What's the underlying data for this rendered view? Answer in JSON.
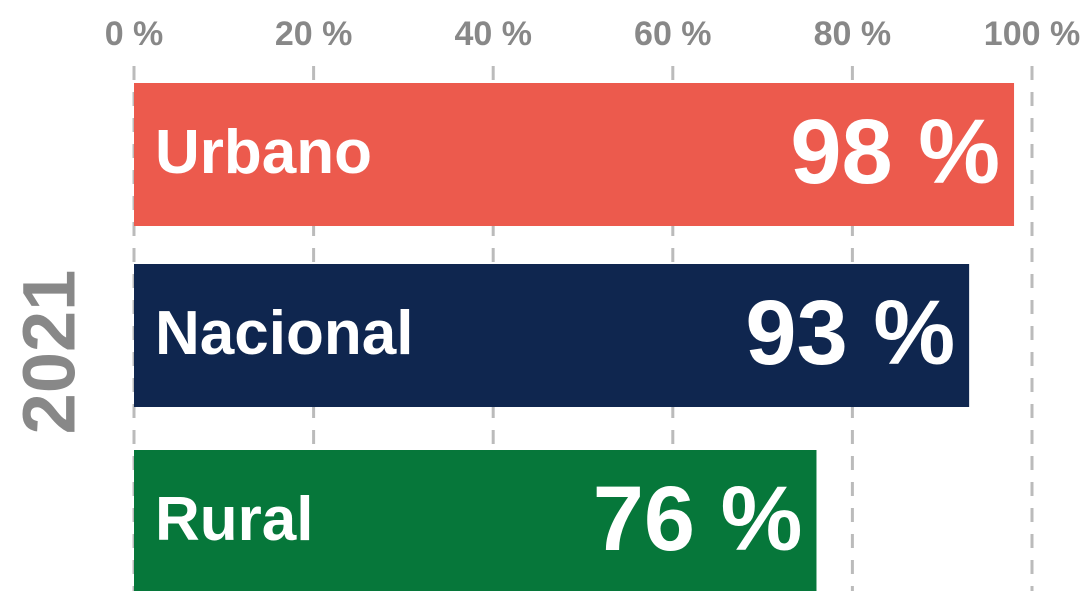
{
  "chart_data": {
    "type": "bar",
    "orientation": "horizontal",
    "y_label": "2021",
    "categories": [
      "Urbano",
      "Nacional",
      "Rural"
    ],
    "values": [
      98,
      93,
      76
    ],
    "value_labels": [
      "98 %",
      "93 %",
      "76 %"
    ],
    "colors": [
      "#ec5a4d",
      "#0f264f",
      "#06773a"
    ],
    "xlim": [
      0,
      100
    ],
    "xticks": [
      {
        "value": 0,
        "label": "0 %"
      },
      {
        "value": 20,
        "label": "20 %"
      },
      {
        "value": 40,
        "label": "40 %"
      },
      {
        "value": 60,
        "label": "60 %"
      },
      {
        "value": 80,
        "label": "80 %"
      },
      {
        "value": 100,
        "label": "100 %"
      }
    ],
    "grid": true
  }
}
